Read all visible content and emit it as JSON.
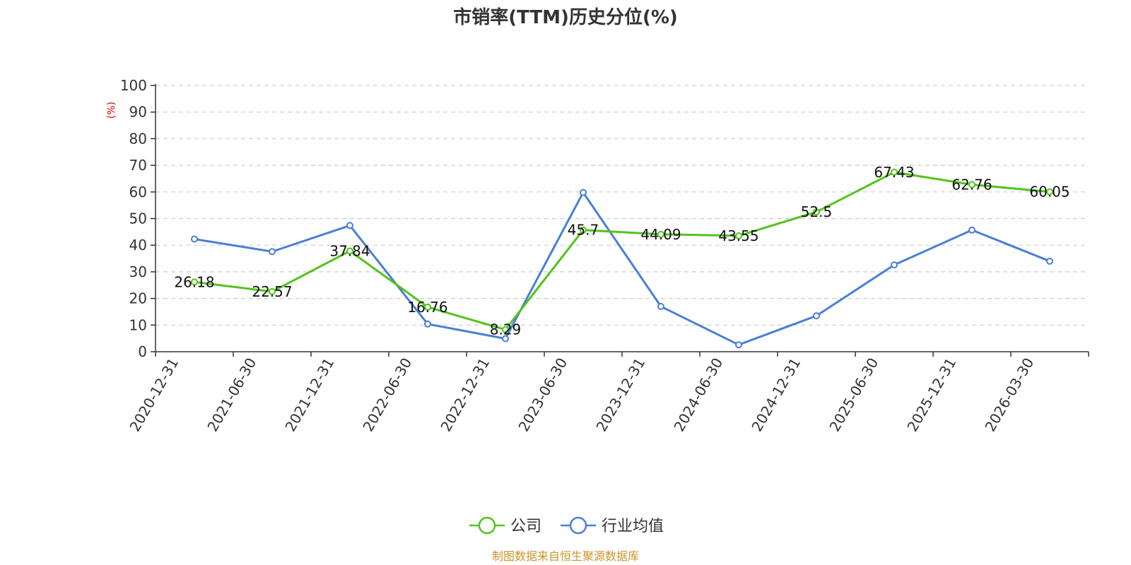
{
  "chart_data": {
    "type": "line",
    "title": "市销率(TTM)历史分位(%)",
    "ylabel": "(%)",
    "ylim": [
      0,
      100
    ],
    "yticks": [
      "0",
      "10",
      "20",
      "30",
      "40",
      "50",
      "60",
      "70",
      "80",
      "90",
      "100"
    ],
    "categories": [
      "2020-12-31",
      "2021-06-30",
      "2021-12-31",
      "2022-06-30",
      "2022-12-31",
      "2023-06-30",
      "2023-12-31",
      "2024-06-30",
      "2024-12-31",
      "2025-06-30",
      "2025-12-31",
      "2026-03-30"
    ],
    "grid": true,
    "legend_position": "bottom-center",
    "series": [
      {
        "name": "公司",
        "color": "#52c41a",
        "values": [
          26.18,
          22.57,
          37.84,
          16.76,
          8.29,
          45.7,
          44.09,
          43.55,
          52.5,
          67.43,
          62.76,
          60.05
        ],
        "labels": [
          "26.18",
          "22.57",
          "37.84",
          "16.76",
          "8.29",
          "45.7",
          "44.09",
          "43.55",
          "52.5",
          "67.43",
          "62.76",
          "60.05"
        ]
      },
      {
        "name": "行业均值",
        "color": "#4a7fd6",
        "values": [
          42.3,
          37.6,
          47.4,
          10.4,
          4.9,
          59.8,
          17.0,
          2.6,
          13.5,
          32.6,
          45.7,
          34.0
        ]
      }
    ]
  },
  "footer": {
    "source": "制图数据来自恒生聚源数据库"
  }
}
